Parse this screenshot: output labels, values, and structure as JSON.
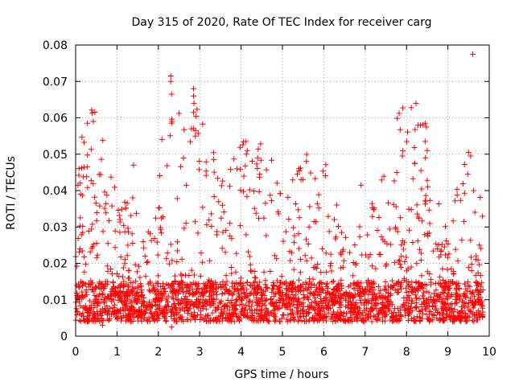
{
  "chart_data": {
    "type": "scatter",
    "title": "Day 315 of 2020, Rate Of TEC Index for receiver carg",
    "xlabel": "GPS time / hours",
    "ylabel": "ROTI / TECUs",
    "xlim": [
      0,
      10
    ],
    "ylim": [
      0,
      0.08
    ],
    "xticks": [
      0,
      1,
      2,
      3,
      4,
      5,
      6,
      7,
      8,
      9,
      10
    ],
    "xtick_labels": [
      "0",
      "1",
      "2",
      "3",
      "4",
      "5",
      "6",
      "7",
      "8",
      "9",
      "10"
    ],
    "yticks": [
      0,
      0.01,
      0.02,
      0.03,
      0.04,
      0.05,
      0.06,
      0.07,
      0.08
    ],
    "ytick_labels": [
      "0",
      "0.01",
      "0.02",
      "0.03",
      "0.04",
      "0.05",
      "0.06",
      "0.07",
      "0.08"
    ],
    "grid": true,
    "marker": "+",
    "marker_color": "#ff0000",
    "x_range_of_data": [
      0,
      9.85
    ],
    "notable_points": [
      {
        "x": 2.3,
        "y": 0.0715
      },
      {
        "x": 2.3,
        "y": 0.07
      },
      {
        "x": 2.32,
        "y": 0.0665
      },
      {
        "x": 2.33,
        "y": 0.059
      },
      {
        "x": 2.85,
        "y": 0.068
      },
      {
        "x": 2.85,
        "y": 0.066
      },
      {
        "x": 2.86,
        "y": 0.064
      },
      {
        "x": 2.85,
        "y": 0.0615
      },
      {
        "x": 2.8,
        "y": 0.057
      },
      {
        "x": 2.9,
        "y": 0.0565
      },
      {
        "x": 0.28,
        "y": 0.0465
      },
      {
        "x": 1.4,
        "y": 0.047
      },
      {
        "x": 1.38,
        "y": 0.038
      },
      {
        "x": 4.12,
        "y": 0.0535
      },
      {
        "x": 4.15,
        "y": 0.051
      },
      {
        "x": 4.4,
        "y": 0.049
      },
      {
        "x": 4.45,
        "y": 0.0445
      },
      {
        "x": 3.9,
        "y": 0.046
      },
      {
        "x": 5.4,
        "y": 0.046
      },
      {
        "x": 5.45,
        "y": 0.043
      },
      {
        "x": 6.9,
        "y": 0.0415
      },
      {
        "x": 7.9,
        "y": 0.0495
      },
      {
        "x": 8.2,
        "y": 0.0475
      },
      {
        "x": 8.35,
        "y": 0.0455
      },
      {
        "x": 8.45,
        "y": 0.0585
      },
      {
        "x": 8.48,
        "y": 0.0575
      },
      {
        "x": 8.45,
        "y": 0.0535
      },
      {
        "x": 8.5,
        "y": 0.051
      },
      {
        "x": 9.5,
        "y": 0.0505
      },
      {
        "x": 9.55,
        "y": 0.0495
      },
      {
        "x": 9.48,
        "y": 0.0445
      },
      {
        "x": 9.6,
        "y": 0.0775
      },
      {
        "x": 9.62,
        "y": 0.04
      },
      {
        "x": 0.65,
        "y": 0.003
      },
      {
        "x": 2.32,
        "y": 0.0025
      }
    ],
    "band_profile": {
      "description": "dense baseline ROTI values throughout the day",
      "baseline_y_range": [
        0.004,
        0.015
      ],
      "typical_peak_y_range": [
        0.015,
        0.038
      ]
    }
  }
}
